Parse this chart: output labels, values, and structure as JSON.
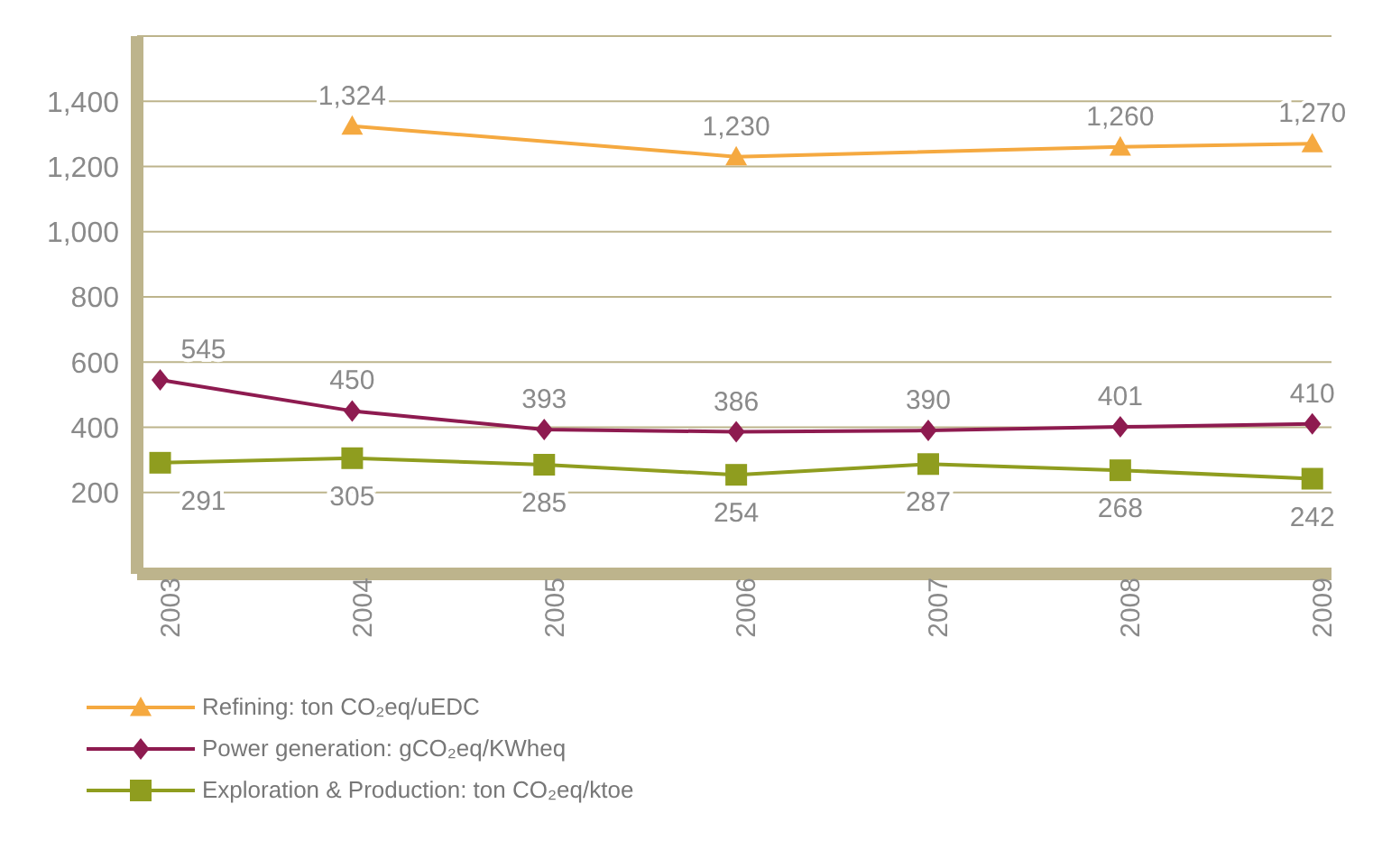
{
  "chart_data": {
    "type": "line",
    "categories": [
      "2003",
      "2004",
      "2005",
      "2006",
      "2007",
      "2008",
      "2009"
    ],
    "series": [
      {
        "name": "Refining: ton CO₂eq/uEDC",
        "color": "#f5a940",
        "marker": "triangle",
        "values": [
          null,
          1324,
          null,
          1230,
          null,
          1260,
          1270
        ],
        "value_labels": [
          null,
          "1,324",
          null,
          "1,230",
          null,
          "1,260",
          "1,270"
        ]
      },
      {
        "name": "Power generation: gCO₂eq/KWheq",
        "color": "#8e1b50",
        "marker": "diamond",
        "values": [
          545,
          450,
          393,
          386,
          390,
          401,
          410
        ]
      },
      {
        "name": "Exploration & Production: ton CO₂eq/ktoe",
        "color": "#8f9d1f",
        "marker": "square",
        "values": [
          291,
          305,
          285,
          254,
          287,
          268,
          242
        ]
      }
    ],
    "data_labels": true,
    "ylim": [
      -50,
      1600
    ],
    "yticks": [
      {
        "value": 200,
        "label": "200"
      },
      {
        "value": 400,
        "label": "400"
      },
      {
        "value": 600,
        "label": "600"
      },
      {
        "value": 800,
        "label": "800"
      },
      {
        "value": 1000,
        "label": "1,000"
      },
      {
        "value": 1200,
        "label": "1,200"
      },
      {
        "value": 1400,
        "label": "1,400"
      }
    ],
    "grid": "y",
    "legend": "bottom left",
    "line_style": "solid"
  }
}
